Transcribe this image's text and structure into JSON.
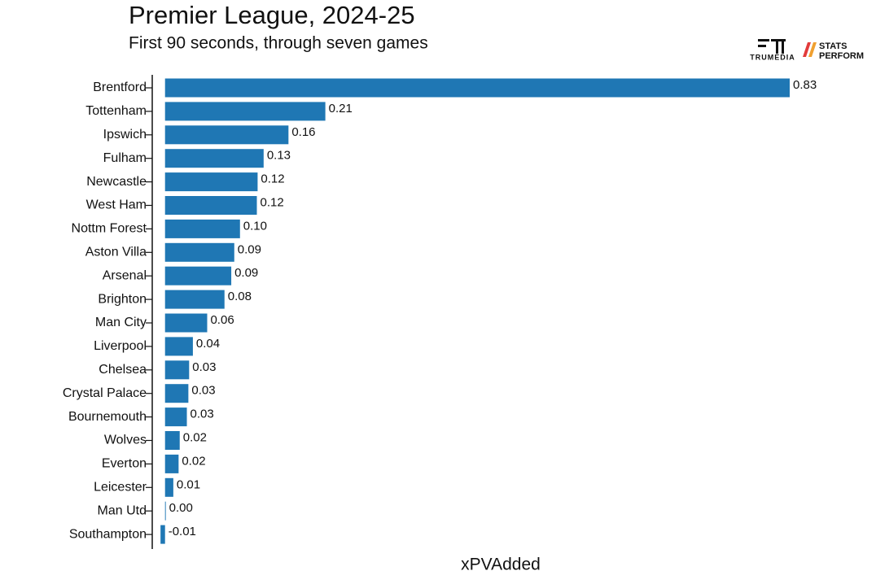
{
  "chart_data": {
    "type": "barh",
    "title": "Premier League, 2024-25",
    "subtitle": "First 90 seconds, through seven games",
    "x_label": "xPVAdded",
    "logo_texts": [
      "TRUMEDIA",
      "STATS",
      "PERFORM"
    ],
    "categories": [
      "Brentford",
      "Tottenham",
      "Ipswich",
      "Fulham",
      "Newcastle",
      "West Ham",
      "Nottm Forest",
      "Aston Villa",
      "Arsenal",
      "Brighton",
      "Man City",
      "Liverpool",
      "Chelsea",
      "Crystal Palace",
      "Bournemouth",
      "Wolves",
      "Everton",
      "Leicester",
      "Man Utd",
      "Southampton"
    ],
    "values": [
      0.83,
      0.213,
      0.164,
      0.131,
      0.123,
      0.122,
      0.0996,
      0.092,
      0.088,
      0.079,
      0.056,
      0.037,
      0.032,
      0.031,
      0.029,
      0.0195,
      0.018,
      0.011,
      0.001,
      -0.006
    ],
    "value_labels": [
      "0.83",
      "0.21",
      "0.16",
      "0.13",
      "0.12",
      "0.12",
      "0.10",
      "0.09",
      "0.09",
      "0.08",
      "0.06",
      "0.04",
      "0.03",
      "0.03",
      "0.03",
      "0.02",
      "0.02",
      "0.01",
      "0.00",
      "-0.01"
    ],
    "color": "#1f77b4",
    "xlim": [
      -0.017,
      0.83
    ]
  }
}
